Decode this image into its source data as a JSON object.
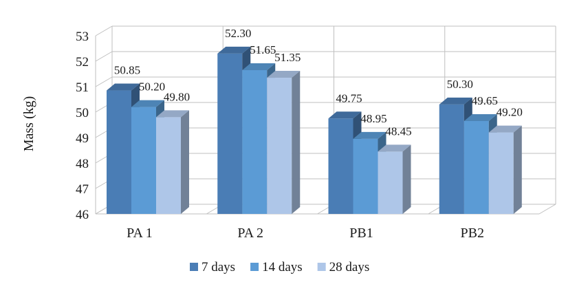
{
  "chart_data": {
    "type": "bar",
    "title": "",
    "xlabel": "",
    "ylabel": "Mass (kg)",
    "ylim": [
      46,
      53
    ],
    "yticks": [
      46,
      47,
      48,
      49,
      50,
      51,
      52,
      53
    ],
    "categories": [
      "PA 1",
      "PA 2",
      "PB1",
      "PB2"
    ],
    "series": [
      {
        "name": "7 days",
        "color": "#4a7db5",
        "values": [
          50.85,
          52.3,
          49.75,
          50.3
        ],
        "labels": [
          "50.85",
          "52.30",
          "49.75",
          "50.30"
        ]
      },
      {
        "name": "14 days",
        "color": "#5b9bd5",
        "values": [
          50.2,
          51.65,
          48.95,
          49.65
        ],
        "labels": [
          "50.20",
          "51.65",
          "48.95",
          "49.65"
        ]
      },
      {
        "name": "28 days",
        "color": "#aec6e8",
        "values": [
          49.8,
          51.35,
          48.45,
          49.2
        ],
        "labels": [
          "49.80",
          "51.35",
          "48.45",
          "49.20"
        ]
      }
    ],
    "grid": true,
    "style": "3d-clustered-column",
    "legend": "bottom"
  }
}
